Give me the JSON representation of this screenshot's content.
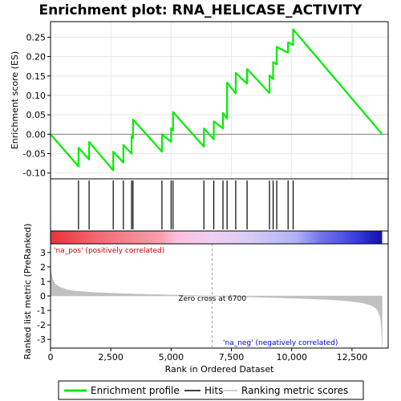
{
  "chart_data": {
    "type": "line",
    "title": "Enrichment plot: RNA_HELICASE_ACTIVITY",
    "es_panel": {
      "ylabel": "Enrichment score (ES)",
      "ylim": [
        -0.115,
        0.29
      ],
      "yticks": [
        -0.1,
        -0.05,
        0.0,
        0.05,
        0.1,
        0.15,
        0.2,
        0.25
      ],
      "ytick_labels": [
        "-0.10",
        "-0.05",
        "0.00",
        "0.05",
        "0.10",
        "0.15",
        "0.20",
        "0.25"
      ],
      "grid": true,
      "zero_line": true
    },
    "x_axis": {
      "label": "Rank in Ordered Dataset",
      "xlim": [
        0,
        14000
      ],
      "ticks": [
        0,
        2500,
        5000,
        7500,
        10000,
        12500
      ],
      "tick_labels": [
        "0",
        "2,500",
        "5,000",
        "7,500",
        "10,000",
        "12,500"
      ],
      "n_genes": 13750
    },
    "series": [
      {
        "name": "Enrichment profile",
        "color": "#00ee00",
        "x": [
          0,
          1160,
          1161,
          1600,
          1601,
          2600,
          2601,
          3020,
          3021,
          3360,
          3361,
          3420,
          3421,
          4620,
          4621,
          5000,
          5001,
          5080,
          5081,
          6360,
          6361,
          6770,
          6771,
          7150,
          7151,
          7320,
          7321,
          7680,
          7681,
          8150,
          8151,
          9080,
          9081,
          9230,
          9231,
          9380,
          9381,
          9850,
          9851,
          10060,
          10061,
          13750
        ],
        "y": [
          0.0,
          -0.083,
          -0.035,
          -0.065,
          -0.02,
          -0.093,
          -0.045,
          -0.073,
          -0.028,
          -0.05,
          -0.005,
          -0.01,
          0.038,
          -0.045,
          0.0,
          -0.02,
          0.015,
          0.01,
          0.057,
          -0.032,
          0.015,
          -0.013,
          0.033,
          0.015,
          0.055,
          0.04,
          0.133,
          0.105,
          0.158,
          0.13,
          0.168,
          0.106,
          0.152,
          0.142,
          0.186,
          0.18,
          0.225,
          0.21,
          0.237,
          0.23,
          0.27,
          0.0
        ]
      }
    ],
    "hits": {
      "name": "Hits",
      "color": "#000000",
      "positions": [
        1160,
        1600,
        2600,
        3020,
        3360,
        3420,
        4620,
        5000,
        5080,
        6360,
        6770,
        7150,
        7320,
        7680,
        8150,
        9080,
        9230,
        9380,
        9850,
        10060
      ]
    },
    "heatmap_bar": {
      "gradient_stops": [
        {
          "rank": 0,
          "color": "#e8323c"
        },
        {
          "rank": 2000,
          "color": "#f46a74"
        },
        {
          "rank": 4600,
          "color": "#f8a0b0"
        },
        {
          "rank": 5200,
          "color": "#fcc0dc"
        },
        {
          "rank": 6700,
          "color": "#f0d0f4"
        },
        {
          "rank": 8300,
          "color": "#d6ccf6"
        },
        {
          "rank": 10200,
          "color": "#b0b2f8"
        },
        {
          "rank": 11200,
          "color": "#7474ee"
        },
        {
          "rank": 12600,
          "color": "#4040e0"
        },
        {
          "rank": 13300,
          "color": "#2020c0"
        },
        {
          "rank": 13750,
          "color": "#1414b0"
        }
      ]
    },
    "ranked_metric": {
      "name": "Ranking metric scores",
      "ylabel": "Ranked list metric (PreRanked)",
      "ylim": [
        -3.6,
        3.6
      ],
      "yticks": [
        3,
        2,
        1,
        0,
        -1,
        -2,
        -3
      ],
      "ytick_labels": [
        "3",
        "2",
        "1",
        "0",
        "-1",
        "-2",
        "-3"
      ],
      "color": "#c0c0c0",
      "x": [
        0,
        30,
        100,
        200,
        400,
        700,
        1000,
        1500,
        2000,
        3000,
        4000,
        5000,
        6000,
        6700,
        7500,
        8500,
        9500,
        10500,
        11500,
        12000,
        12500,
        13000,
        13300,
        13500,
        13600,
        13680,
        13720,
        13750
      ],
      "y": [
        2.1,
        1.6,
        1.1,
        0.8,
        0.6,
        0.42,
        0.34,
        0.27,
        0.22,
        0.16,
        0.11,
        0.07,
        0.03,
        0.0,
        -0.04,
        -0.08,
        -0.13,
        -0.18,
        -0.25,
        -0.3,
        -0.38,
        -0.5,
        -0.65,
        -0.85,
        -1.1,
        -1.5,
        -2.2,
        -3.4
      ]
    },
    "annotations": {
      "pos_label": "'na_pos' (positively correlated)",
      "neg_label": "'na_neg' (negatively correlated)",
      "zero_cross": "Zero cross at 6700",
      "zero_cross_rank": 6700
    },
    "legend": {
      "placement": "bottom",
      "items": [
        {
          "label": "Enrichment profile",
          "color": "#00ee00"
        },
        {
          "label": "Hits",
          "color": "#000000"
        },
        {
          "label": "Ranking metric scores",
          "color": "#c0c0c0"
        }
      ]
    },
    "colors": {
      "pos_text": "#cc0000",
      "neg_text": "#0000cc",
      "grid": "#e8e8e8"
    }
  }
}
